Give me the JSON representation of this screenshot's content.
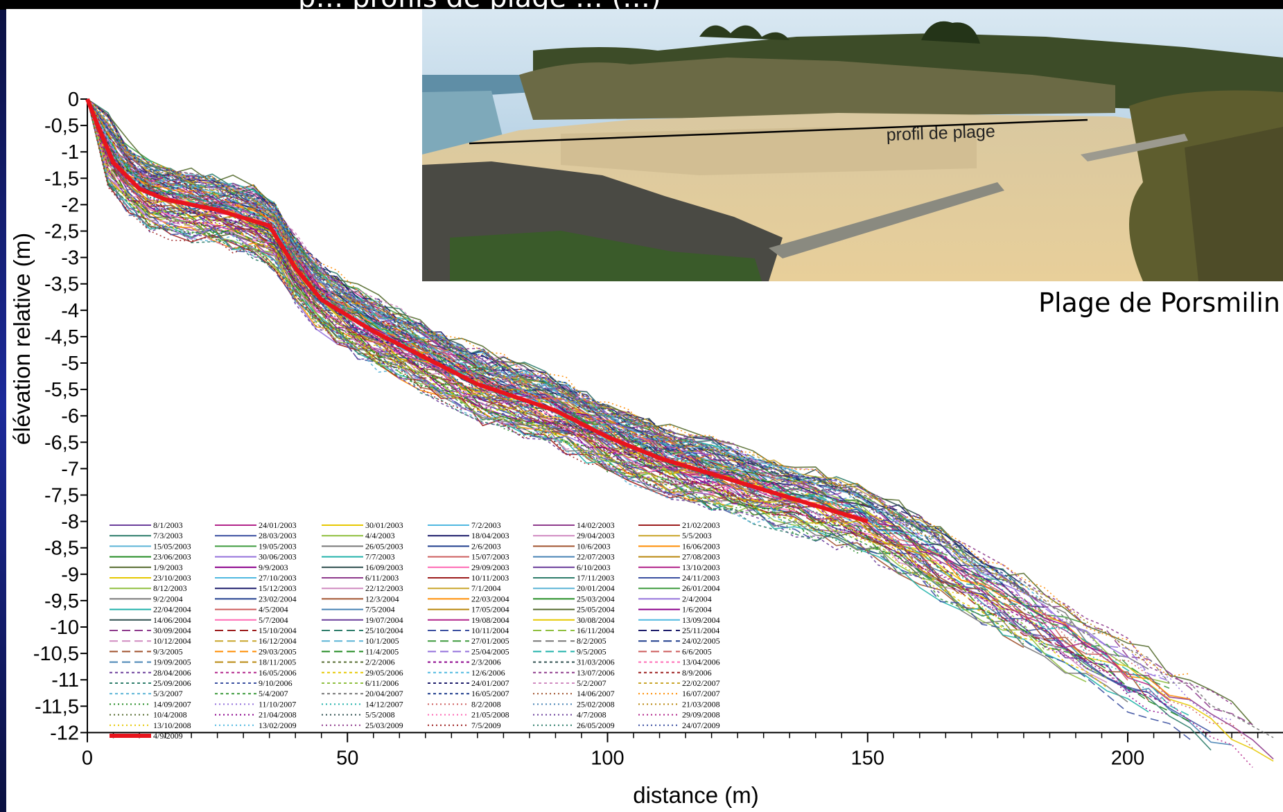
{
  "header": {
    "title_fragment": "p… profils de plage … (…)"
  },
  "photo": {
    "caption": "Plage de Porsmilin",
    "line_label": "profil de plage"
  },
  "colors": {
    "highlight": "#e8141c",
    "sky": "#b9d3e6",
    "sea": "#6f9fb3",
    "sand": "#e0c79a",
    "cliff": "#5c5a3a",
    "vegetation": "#3f5a2a"
  },
  "chart_data": {
    "type": "line",
    "xlabel": "distance (m)",
    "ylabel": "élévation relative (m)",
    "xlim": [
      0,
      230
    ],
    "ylim": [
      -12,
      0
    ],
    "x_ticks": [
      "0",
      "50",
      "100",
      "150",
      "200"
    ],
    "y_ticks": [
      "0",
      "-0,5",
      "-1",
      "-1,5",
      "-2",
      "-2,5",
      "-3",
      "-3,5",
      "-4",
      "-4,5",
      "-5",
      "-5,5",
      "-6",
      "-6,5",
      "-7",
      "-7,5",
      "-8",
      "-8,5",
      "-9",
      "-9,5",
      "-10",
      "-10,5",
      "-11",
      "-11,5",
      "-12"
    ],
    "grid": false,
    "legend_placement": "bottom-left",
    "highlight_series": {
      "name": "4/9/2009",
      "x": [
        0,
        2,
        5,
        10,
        15,
        25,
        35,
        40,
        45,
        55,
        65,
        75,
        90,
        100,
        110,
        120,
        130,
        140,
        150
      ],
      "y": [
        0,
        -0.5,
        -1.2,
        -1.7,
        -1.9,
        -2.1,
        -2.4,
        -3.2,
        -3.8,
        -4.4,
        -4.9,
        -5.4,
        -5.9,
        -6.4,
        -6.8,
        -7.1,
        -7.4,
        -7.7,
        -8.0
      ]
    },
    "legend": [
      "8/1/2003",
      "24/01/2003",
      "30/01/2003",
      "7/2/2003",
      "14/02/2003",
      "21/02/2003",
      "7/3/2003",
      "28/03/2003",
      "4/4/2003",
      "18/04/2003",
      "29/04/2003",
      "5/5/2003",
      "15/05/2003",
      "19/05/2003",
      "26/05/2003",
      "2/6/2003",
      "10/6/2003",
      "16/06/2003",
      "23/06/2003",
      "30/06/2003",
      "7/7/2003",
      "15/07/2003",
      "22/07/2003",
      "27/08/2003",
      "1/9/2003",
      "9/9/2003",
      "16/09/2003",
      "29/09/2003",
      "6/10/2003",
      "13/10/2003",
      "23/10/2003",
      "27/10/2003",
      "6/11/2003",
      "10/11/2003",
      "17/11/2003",
      "24/11/2003",
      "8/12/2003",
      "15/12/2003",
      "22/12/2003",
      "7/1/2004",
      "20/01/2004",
      "26/01/2004",
      "9/2/2004",
      "23/02/2004",
      "12/3/2004",
      "22/03/2004",
      "25/03/2004",
      "2/4/2004",
      "22/04/2004",
      "4/5/2004",
      "7/5/2004",
      "17/05/2004",
      "25/05/2004",
      "1/6/2004",
      "14/06/2004",
      "5/7/2004",
      "19/07/2004",
      "19/08/2004",
      "30/08/2004",
      "13/09/2004",
      "30/09/2004",
      "15/10/2004",
      "25/10/2004",
      "10/11/2004",
      "16/11/2004",
      "25/11/2004",
      "10/12/2004",
      "16/12/2004",
      "10/1/2005",
      "27/01/2005",
      "8/2/2005",
      "24/02/2005",
      "9/3/2005",
      "29/03/2005",
      "11/4/2005",
      "25/04/2005",
      "9/5/2005",
      "6/6/2005",
      "19/09/2005",
      "18/11/2005",
      "2/2/2006",
      "2/3/2006",
      "31/03/2006",
      "13/04/2006",
      "28/04/2006",
      "16/05/2006",
      "29/05/2006",
      "12/6/2006",
      "13/07/2006",
      "8/9/2006",
      "25/09/2006",
      "9/10/2006",
      "6/11/2006",
      "24/01/2007",
      "5/2/2007",
      "22/02/2007",
      "5/3/2007",
      "5/4/2007",
      "20/04/2007",
      "16/05/2007",
      "14/06/2007",
      "16/07/2007",
      "14/09/2007",
      "11/10/2007",
      "14/12/2007",
      "8/2/2008",
      "25/02/2008",
      "21/03/2008",
      "10/4/2008",
      "21/04/2008",
      "5/5/2008",
      "21/05/2008",
      "4/7/2008",
      "29/09/2008",
      "13/10/2008",
      "13/02/2009",
      "25/03/2009",
      "7/5/2009",
      "26/05/2009",
      "24/07/2009",
      "4/9/2009"
    ]
  }
}
